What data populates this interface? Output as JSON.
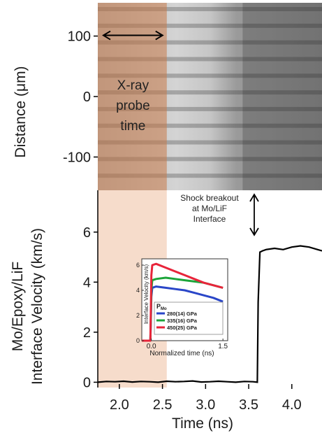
{
  "chart_data": [
    {
      "type": "image",
      "panel": "top",
      "ylabel": "Distance (μm)",
      "y_ticks": [
        100,
        0,
        -100
      ],
      "ylim": [
        -155,
        155
      ],
      "xlim": [
        1.75,
        4.35
      ],
      "annotation": {
        "lines": [
          "X-ray",
          "probe",
          "time"
        ],
        "x_range": [
          1.75,
          2.55
        ],
        "arrow_y": 100
      },
      "colors": {
        "probe_band": "#c97a48",
        "image_light": "#d8d8d8",
        "image_dark": "#2a2a2a"
      }
    },
    {
      "type": "line",
      "panel": "bottom",
      "xlabel": "Time (ns)",
      "ylabel_lines": [
        "Mo/Epoxy/LiF",
        "Interface Velocity (km/s)"
      ],
      "x_ticks": [
        "2.0",
        "2.5",
        "3.0",
        "3.5",
        "4.0"
      ],
      "y_ticks": [
        0,
        2,
        4,
        6
      ],
      "xlim": [
        1.75,
        4.35
      ],
      "ylim": [
        -0.1,
        7.0
      ],
      "series": [
        {
          "x": [
            1.75,
            1.85,
            1.95,
            2.05,
            2.15,
            2.25,
            2.35,
            2.45,
            2.55,
            2.65,
            2.75,
            2.85,
            2.95,
            3.05,
            3.15,
            3.25,
            3.35,
            3.45,
            3.55,
            3.6,
            3.61,
            3.63,
            3.66,
            3.7,
            3.8,
            3.9,
            4.0,
            4.1,
            4.2,
            4.3,
            4.35
          ],
          "y": [
            0.0,
            0.03,
            0.02,
            0.04,
            0.01,
            0.03,
            0.02,
            0.0,
            0.04,
            0.02,
            0.03,
            0.05,
            0.01,
            0.02,
            0.04,
            0.02,
            0.0,
            0.03,
            0.02,
            0.0,
            3.2,
            5.2,
            5.25,
            5.3,
            5.35,
            5.3,
            5.4,
            5.45,
            5.4,
            5.3,
            5.25
          ]
        }
      ],
      "annotation": {
        "lines": [
          "Shock breakout",
          "at Mo/LiF",
          "Interface"
        ]
      },
      "colors": {
        "probe_band": "#f6dccb",
        "line": "#000000"
      }
    },
    {
      "type": "line",
      "panel": "inset",
      "xlabel": "Normalized time (ns)",
      "ylabel": "Interface Velocity (km/s)",
      "x_ticks": [
        "0.0",
        "1.5"
      ],
      "y_ticks": [
        0,
        2,
        4,
        6
      ],
      "xlim": [
        -0.2,
        1.6
      ],
      "ylim": [
        0,
        6.5
      ],
      "legend_title": "P",
      "legend_title_sub": "Mo",
      "legend_position": "lower-left",
      "series": [
        {
          "name": "280(14) GPa",
          "color": "#2a46c8",
          "x": [
            -0.2,
            -0.02,
            0.0,
            0.02,
            0.1,
            0.3,
            0.5,
            0.7,
            0.9,
            1.1,
            1.3,
            1.5
          ],
          "y": [
            0.0,
            0.0,
            3.5,
            4.2,
            4.3,
            4.2,
            4.1,
            4.0,
            3.8,
            3.6,
            3.4,
            3.1
          ]
        },
        {
          "name": "335(16) GPa",
          "color": "#1ca53a",
          "x": [
            -0.2,
            -0.02,
            0.0,
            0.02,
            0.1,
            0.3,
            0.5,
            0.7,
            0.9,
            1.1,
            1.3,
            1.5
          ],
          "y": [
            0.0,
            0.0,
            4.0,
            4.8,
            4.9,
            5.0,
            4.9,
            4.8,
            4.7,
            4.6,
            4.4,
            4.2
          ]
        },
        {
          "name": "450(25) GPa",
          "color": "#e8243a",
          "x": [
            -0.2,
            -0.02,
            0.0,
            0.02,
            0.1,
            0.3,
            0.5,
            0.7,
            0.9,
            1.1,
            1.3,
            1.5
          ],
          "y": [
            0.0,
            0.0,
            5.2,
            6.0,
            6.1,
            5.8,
            5.5,
            5.2,
            4.9,
            4.6,
            4.4,
            4.2
          ]
        }
      ]
    }
  ]
}
